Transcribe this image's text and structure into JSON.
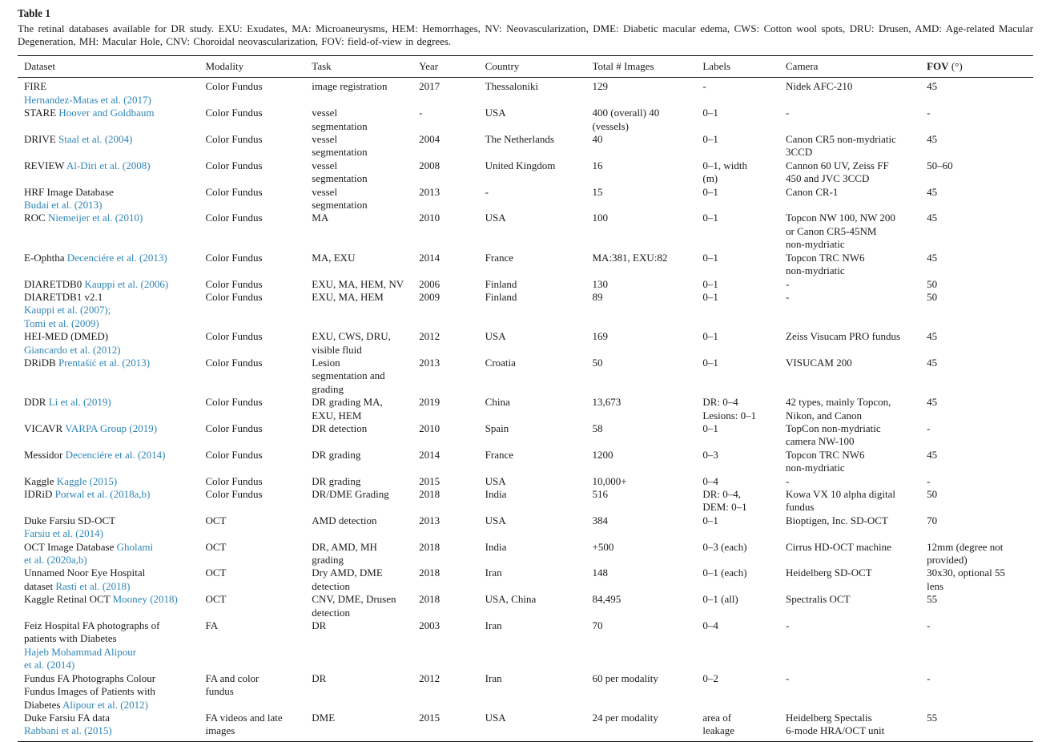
{
  "colors": {
    "link": "#2e85b5",
    "text": "#1b1b1b",
    "rule": "#111111"
  },
  "caption": {
    "label": "Table 1",
    "text": "The retinal databases available for DR study. EXU: Exudates, MA: Microaneurysms, HEM: Hemorrhages, NV: Neovascularization, DME: Diabetic macular edema, CWS: Cotton wool spots, DRU: Drusen, AMD: Age-related Macular Degeneration, MH: Macular Hole, CNV: Choroidal neovascularization, FOV: field-of-view in degrees."
  },
  "table": {
    "headers": [
      {
        "text": "Dataset",
        "bold": false
      },
      {
        "text": "Modality",
        "bold": false
      },
      {
        "text": "Task",
        "bold": false
      },
      {
        "text": "Year",
        "bold": false
      },
      {
        "text": "Country",
        "bold": false
      },
      {
        "text": "Total # Images",
        "bold": false
      },
      {
        "text": "Labels",
        "bold": false
      },
      {
        "text": "Camera",
        "bold": false
      },
      {
        "text": "FOV",
        "bold": true,
        "suffix": "(°)"
      }
    ],
    "rows": [
      {
        "dataset": [
          {
            "text": "FIRE",
            "link": false
          },
          {
            "text": "Hernandez-Matas et al. (2017)",
            "link": true,
            "nl": true
          }
        ],
        "modality": "Color Fundus",
        "task": "image registration",
        "year": "2017",
        "country": "Thessaloniki",
        "total": "129",
        "labels": "-",
        "camera": "Nidek AFC-210",
        "fov": "45"
      },
      {
        "dataset": [
          {
            "text": "STARE",
            "link": false
          },
          {
            "text": "Hoover and Goldbaum",
            "link": true
          }
        ],
        "modality": "Color Fundus",
        "task": "vessel\nsegmentation",
        "year": "-",
        "country": "USA",
        "total": "400 (overall) 40\n(vessels)",
        "labels": "0–1",
        "camera": "-",
        "fov": "-"
      },
      {
        "dataset": [
          {
            "text": "DRIVE",
            "link": false
          },
          {
            "text": "Staal et al. (2004)",
            "link": true
          }
        ],
        "modality": "Color Fundus",
        "task": "vessel\nsegmentation",
        "year": "2004",
        "country": "The Netherlands",
        "total": "40",
        "labels": "0–1",
        "camera": "Canon CR5 non-mydriatic\n3CCD",
        "fov": "45"
      },
      {
        "dataset": [
          {
            "text": "REVIEW",
            "link": false
          },
          {
            "text": "Al-Diri et al. (2008)",
            "link": true
          }
        ],
        "modality": "Color Fundus",
        "task": "vessel\nsegmentation",
        "year": "2008",
        "country": "United Kingdom",
        "total": "16",
        "labels": "0–1, width\n(m)",
        "camera": "Cannon 60 UV, Zeiss FF\n450 and JVC 3CCD",
        "fov": "50–60"
      },
      {
        "dataset": [
          {
            "text": "HRF Image Database",
            "link": false
          },
          {
            "text": "Budai et al. (2013)",
            "link": true,
            "nl": true
          }
        ],
        "modality": "Color Fundus",
        "task": "vessel\nsegmentation",
        "year": "2013",
        "country": "-",
        "total": "15",
        "labels": "0–1",
        "camera": "Canon CR-1",
        "fov": "45"
      },
      {
        "dataset": [
          {
            "text": "ROC",
            "link": false
          },
          {
            "text": "Niemeijer et al. (2010)",
            "link": true
          }
        ],
        "modality": "Color Fundus",
        "task": "MA",
        "year": "2010",
        "country": "USA",
        "total": "100",
        "labels": "0–1",
        "camera": "Topcon NW 100, NW 200\nor Canon CR5-45NM\nnon-mydriatic",
        "fov": "45"
      },
      {
        "dataset": [
          {
            "text": "E-Ophtha",
            "link": false
          },
          {
            "text": "Decenciére et al. (2013)",
            "link": true
          }
        ],
        "modality": "Color Fundus",
        "task": "MA, EXU",
        "year": "2014",
        "country": "France",
        "total": "MA:381, EXU:82",
        "labels": "0–1",
        "camera": "Topcon TRC NW6\nnon-mydriatic",
        "fov": "45"
      },
      {
        "dataset": [
          {
            "text": "DIARETDB0",
            "link": false
          },
          {
            "text": "Kauppi et al. (2006)",
            "link": true
          }
        ],
        "modality": "Color Fundus",
        "task": "EXU, MA, HEM, NV",
        "year": "2006",
        "country": "Finland",
        "total": "130",
        "labels": "0–1",
        "camera": "-",
        "fov": "50"
      },
      {
        "dataset": [
          {
            "text": "DIARETDB1 v2.1",
            "link": false
          },
          {
            "text": "Kauppi et al. (2007);",
            "link": true,
            "nl": true
          },
          {
            "text": "Tomi et al. (2009)",
            "link": true,
            "nl": true
          }
        ],
        "modality": "Color Fundus",
        "task": "EXU, MA, HEM",
        "year": "2009",
        "country": "Finland",
        "total": "89",
        "labels": "0–1",
        "camera": "-",
        "fov": "50"
      },
      {
        "dataset": [
          {
            "text": "HEI-MED (DMED)",
            "link": false
          },
          {
            "text": "Giancardo et al. (2012)",
            "link": true,
            "nl": true
          }
        ],
        "modality": "Color Fundus",
        "task": "EXU, CWS, DRU,\nvisible fluid",
        "year": "2012",
        "country": "USA",
        "total": "169",
        "labels": "0–1",
        "camera": "Zeiss Visucam PRO fundus",
        "fov": "45"
      },
      {
        "dataset": [
          {
            "text": "DRiDB",
            "link": false
          },
          {
            "text": "Prentašić et al. (2013)",
            "link": true
          }
        ],
        "modality": "Color Fundus",
        "task": "Lesion\nsegmentation and\ngrading",
        "year": "2013",
        "country": "Croatia",
        "total": "50",
        "labels": "0–1",
        "camera": "VISUCAM 200",
        "fov": "45"
      },
      {
        "dataset": [
          {
            "text": "DDR",
            "link": false
          },
          {
            "text": "Li et al. (2019)",
            "link": true
          }
        ],
        "modality": "Color Fundus",
        "task": "DR grading MA,\nEXU, HEM",
        "year": "2019",
        "country": "China",
        "total": "13,673",
        "labels": "DR: 0–4\nLesions: 0–1",
        "camera": "42 types, mainly Topcon,\nNikon, and Canon",
        "fov": "45"
      },
      {
        "dataset": [
          {
            "text": "VICAVR",
            "link": false
          },
          {
            "text": "VARPA Group (2019)",
            "link": true
          }
        ],
        "modality": "Color Fundus",
        "task": "DR detection",
        "year": "2010",
        "country": "Spain",
        "total": "58",
        "labels": "0–1",
        "camera": "TopCon non-mydriatic\ncamera NW-100",
        "fov": "-"
      },
      {
        "dataset": [
          {
            "text": "Messidor",
            "link": false
          },
          {
            "text": "Decenciére et al. (2014)",
            "link": true
          }
        ],
        "modality": "Color Fundus",
        "task": "DR grading",
        "year": "2014",
        "country": "France",
        "total": "1200",
        "labels": "0–3",
        "camera": "Topcon TRC NW6\nnon-mydriatic",
        "fov": "45"
      },
      {
        "dataset": [
          {
            "text": "Kaggle",
            "link": false
          },
          {
            "text": "Kaggle (2015)",
            "link": true
          }
        ],
        "modality": "Color Fundus",
        "task": "DR grading",
        "year": "2015",
        "country": "USA",
        "total": "10,000+",
        "labels": "0–4",
        "camera": "-",
        "fov": "-"
      },
      {
        "dataset": [
          {
            "text": "IDRiD",
            "link": false
          },
          {
            "text": "Porwal et al. (2018a,b)",
            "link": true
          }
        ],
        "modality": "Color Fundus",
        "task": "DR/DME Grading",
        "year": "2018",
        "country": "India",
        "total": "516",
        "labels": "DR: 0–4,\nDEM: 0–1",
        "camera": "Kowa VX 10 alpha digital\nfundus",
        "fov": "50"
      },
      {
        "dataset": [
          {
            "text": "Duke Farsiu SD-OCT",
            "link": false
          },
          {
            "text": "Farsiu et al. (2014)",
            "link": true,
            "nl": true
          }
        ],
        "modality": "OCT",
        "task": "AMD detection",
        "year": "2013",
        "country": "USA",
        "total": "384",
        "labels": "0–1",
        "camera": "Bioptigen, Inc. SD-OCT",
        "fov": "70"
      },
      {
        "dataset": [
          {
            "text": "OCT Image Database",
            "link": false
          },
          {
            "text": "Gholami\net al. (2020a,b)",
            "link": true
          }
        ],
        "modality": "OCT",
        "task": "DR, AMD, MH\ngrading",
        "year": "2018",
        "country": "India",
        "total": "+500",
        "labels": "0–3 (each)",
        "camera": "Cirrus HD-OCT machine",
        "fov": "12mm (degree not\nprovided)"
      },
      {
        "dataset": [
          {
            "text": "Unnamed Noor Eye Hospital\ndataset",
            "link": false
          },
          {
            "text": "Rasti et al. (2018)",
            "link": true
          }
        ],
        "modality": "OCT",
        "task": "Dry AMD, DME\ndetection",
        "year": "2018",
        "country": "Iran",
        "total": "148",
        "labels": "0–1 (each)",
        "camera": "Heidelberg SD-OCT",
        "fov": "30x30, optional 55\nlens"
      },
      {
        "dataset": [
          {
            "text": "Kaggle Retinal OCT",
            "link": false
          },
          {
            "text": "Mooney (2018)",
            "link": true
          }
        ],
        "modality": "OCT",
        "task": "CNV, DME, Drusen\ndetection",
        "year": "2018",
        "country": "USA, China",
        "total": "84,495",
        "labels": "0–1 (all)",
        "camera": "Spectralis OCT",
        "fov": "55"
      },
      {
        "dataset": [
          {
            "text": "Feiz Hospital FA photographs of\npatients with Diabetes",
            "link": false
          },
          {
            "text": "Hajeb Mohammad Alipour\net al. (2014)",
            "link": true,
            "nl": true
          }
        ],
        "modality": "FA",
        "task": "DR",
        "year": "2003",
        "country": "Iran",
        "total": "70",
        "labels": "0–4",
        "camera": "-",
        "fov": "-"
      },
      {
        "dataset": [
          {
            "text": "Fundus FA Photographs Colour\nFundus Images of Patients with\nDiabetes",
            "link": false
          },
          {
            "text": "Alipour et al. (2012)",
            "link": true
          }
        ],
        "modality": "FA and color\nfundus",
        "task": "DR",
        "year": "2012",
        "country": "Iran",
        "total": "60 per modality",
        "labels": "0–2",
        "camera": "-",
        "fov": "-"
      },
      {
        "dataset": [
          {
            "text": "Duke Farsiu FA data",
            "link": false
          },
          {
            "text": "Rabbani et al. (2015)",
            "link": true,
            "nl": true
          }
        ],
        "modality": "FA videos and late\nimages",
        "task": "DME",
        "year": "2015",
        "country": "USA",
        "total": "24 per modality",
        "labels": "area of\nleakage",
        "camera": "Heidelberg Spectalis\n6-mode HRA/OCT unit",
        "fov": "55"
      }
    ]
  }
}
